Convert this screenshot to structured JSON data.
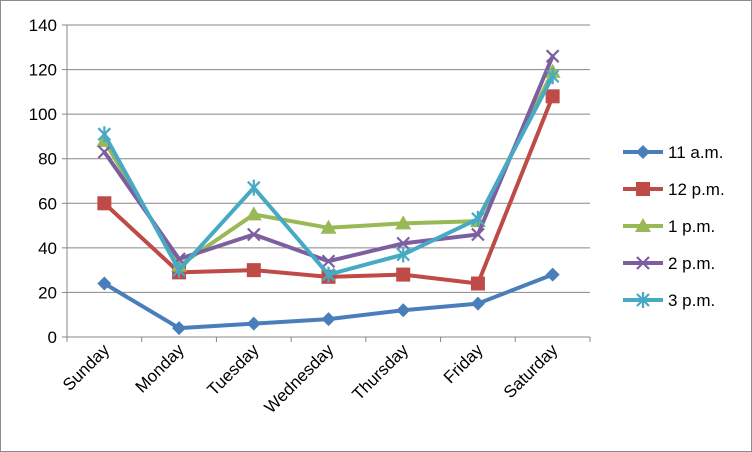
{
  "chart_data": {
    "type": "line",
    "title": "",
    "xlabel": "",
    "ylabel": "",
    "categories": [
      "Sunday",
      "Monday",
      "Tuesday",
      "Wednesday",
      "Thursday",
      "Friday",
      "Saturday"
    ],
    "ylim": [
      0,
      140
    ],
    "yticks": [
      0,
      20,
      40,
      60,
      80,
      100,
      120,
      140
    ],
    "grid": true,
    "legend_position": "right",
    "series": [
      {
        "name": "11 a.m.",
        "color": "#4a7ebb",
        "marker": "diamond",
        "values": [
          24,
          4,
          6,
          8,
          12,
          15,
          28
        ]
      },
      {
        "name": "12 p.m.",
        "color": "#be4b48",
        "marker": "square",
        "values": [
          60,
          29,
          30,
          27,
          28,
          24,
          108
        ]
      },
      {
        "name": "1 p.m.",
        "color": "#98b954",
        "marker": "triangle",
        "values": [
          88,
          32,
          55,
          49,
          51,
          52,
          119
        ]
      },
      {
        "name": "2 p.m.",
        "color": "#7d5fa0",
        "marker": "x",
        "values": [
          83,
          35,
          46,
          34,
          42,
          46,
          126
        ]
      },
      {
        "name": "3 p.m.",
        "color": "#46aac5",
        "marker": "star",
        "values": [
          91,
          30,
          67,
          28,
          37,
          53,
          117
        ]
      }
    ]
  }
}
